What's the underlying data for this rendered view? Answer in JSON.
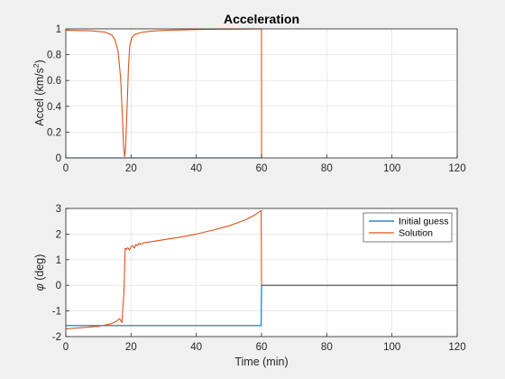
{
  "colors": {
    "background": "#f0f0f0",
    "axes_bg": "#ffffff",
    "grid": "#dcdcdc",
    "axis": "#262626",
    "initial_guess": "#0072bd",
    "solution": "#d95319",
    "final_segment": "#404040"
  },
  "chart_data": [
    {
      "type": "line",
      "title": "Acceleration",
      "xlabel": "",
      "ylabel": "Accel (km/s²)",
      "ylabel_parts": {
        "main": "Accel (km/s",
        "sup": "2",
        "close": ")"
      },
      "xlim": [
        0,
        120
      ],
      "ylim": [
        0,
        1
      ],
      "xticks": [
        0,
        20,
        40,
        60,
        80,
        100,
        120
      ],
      "yticks": [
        0,
        0.2,
        0.4,
        0.6,
        0.8,
        1
      ],
      "ytick_labels": [
        "0",
        "0.2",
        "0.4",
        "0.6",
        "0.8",
        "1"
      ],
      "grid": true,
      "series": [
        {
          "name": "Initial guess",
          "color": "#0072bd",
          "x": [
            0,
            60
          ],
          "y": [
            0,
            0
          ]
        },
        {
          "name": "Solution",
          "color": "#d95319",
          "x": [
            0,
            8,
            12,
            14,
            15,
            16,
            16.8,
            17.3,
            17.7,
            18,
            18.3,
            18.8,
            19.2,
            19.6,
            20.2,
            21,
            23,
            26,
            30,
            35,
            40,
            45,
            50,
            55,
            59.9,
            60,
            60.01
          ],
          "y": [
            0.99,
            0.985,
            0.975,
            0.955,
            0.92,
            0.83,
            0.62,
            0.35,
            0.1,
            0.01,
            0.06,
            0.4,
            0.7,
            0.87,
            0.93,
            0.955,
            0.972,
            0.982,
            0.988,
            0.992,
            0.995,
            0.997,
            0.998,
            0.999,
            1,
            1,
            0
          ]
        }
      ]
    },
    {
      "type": "line",
      "title": "",
      "xlabel": "Time (min)",
      "ylabel": "φ (deg)",
      "ylabel_parts": {
        "symbol": "φ",
        "rest": " (deg)"
      },
      "xlim": [
        0,
        120
      ],
      "ylim": [
        -2,
        3
      ],
      "xticks": [
        0,
        20,
        40,
        60,
        80,
        100,
        120
      ],
      "yticks": [
        -2,
        -1,
        0,
        1,
        2,
        3
      ],
      "ytick_labels": [
        "-2",
        "-1",
        "0",
        "1",
        "2",
        "3"
      ],
      "grid": true,
      "legend": {
        "position": "top-right",
        "entries": [
          "Initial guess",
          "Solution"
        ]
      },
      "series": [
        {
          "name": "Initial guess",
          "color": "#0072bd",
          "x": [
            0,
            59.9,
            60
          ],
          "y": [
            -1.57,
            -1.57,
            0
          ]
        },
        {
          "name": "Solution",
          "color": "#d95319",
          "x": [
            0,
            5,
            10,
            14,
            15.5,
            16.5,
            17.2,
            17.8,
            18.2,
            18.6,
            19,
            19.5,
            20,
            20.5,
            21,
            21.5,
            22,
            22.5,
            23,
            24,
            26,
            30,
            35,
            40,
            45,
            50,
            55,
            58,
            59.9,
            60
          ],
          "y": [
            -1.7,
            -1.65,
            -1.6,
            -1.5,
            -1.4,
            -1.3,
            -1.45,
            -0.3,
            1.45,
            1.4,
            1.47,
            1.38,
            1.5,
            1.55,
            1.45,
            1.6,
            1.55,
            1.65,
            1.6,
            1.66,
            1.7,
            1.78,
            1.88,
            2.0,
            2.15,
            2.32,
            2.55,
            2.75,
            2.92,
            0
          ]
        },
        {
          "name": "",
          "color": "#404040",
          "x": [
            60,
            120
          ],
          "y": [
            0,
            0
          ]
        }
      ]
    }
  ]
}
